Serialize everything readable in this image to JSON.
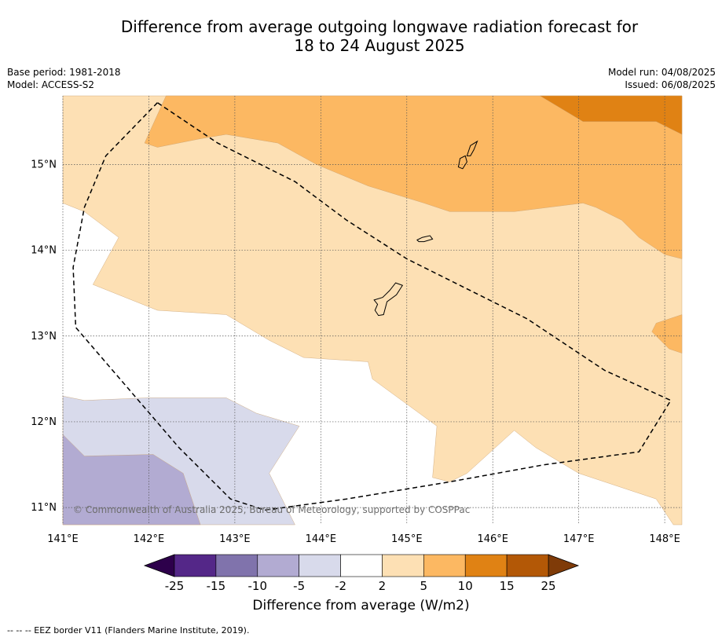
{
  "header": {
    "title_line1": "Difference from average outgoing longwave radiation forecast for",
    "title_line2": "18 to 24 August 2025",
    "base_period": "Base period: 1981-2018",
    "model": "Model: ACCESS-S2",
    "model_run": "Model run: 04/08/2025",
    "issued": "Issued: 06/08/2025"
  },
  "map": {
    "lon_range": [
      141.0,
      148.2
    ],
    "lat_range": [
      10.8,
      15.8
    ],
    "lon_ticks": [
      {
        "value": 141,
        "label": "141°E"
      },
      {
        "value": 142,
        "label": "142°E"
      },
      {
        "value": 143,
        "label": "143°E"
      },
      {
        "value": 144,
        "label": "144°E"
      },
      {
        "value": 145,
        "label": "145°E"
      },
      {
        "value": 146,
        "label": "146°E"
      },
      {
        "value": 147,
        "label": "147°E"
      },
      {
        "value": 148,
        "label": "148°E"
      }
    ],
    "lat_ticks": [
      {
        "value": 15,
        "label": "15°N"
      },
      {
        "value": 14,
        "label": "14°N"
      },
      {
        "value": 13,
        "label": "13°N"
      },
      {
        "value": 12,
        "label": "12°N"
      },
      {
        "value": 11,
        "label": "11°N"
      }
    ],
    "copyright": "© Commonwealth of Australia 2025, Bureau of Meteorology, supported by COSPPac",
    "zones": [
      {
        "level": "2 to 5",
        "color": "#fde0b4",
        "points": [
          [
            141,
            15.8
          ],
          [
            148.2,
            15.8
          ],
          [
            148.2,
            10.8
          ],
          [
            148.1,
            10.8
          ],
          [
            147.9,
            11.1
          ],
          [
            147.0,
            11.4
          ],
          [
            146.5,
            11.7
          ],
          [
            146.25,
            11.9
          ],
          [
            145.7,
            11.4
          ],
          [
            145.5,
            11.3
          ],
          [
            145.3,
            11.35
          ],
          [
            145.35,
            11.95
          ],
          [
            144.6,
            12.5
          ],
          [
            144.55,
            12.7
          ],
          [
            143.8,
            12.75
          ],
          [
            143.4,
            12.95
          ],
          [
            142.9,
            13.25
          ],
          [
            142.1,
            13.3
          ],
          [
            141.35,
            13.6
          ],
          [
            141.65,
            14.15
          ],
          [
            141.25,
            14.45
          ],
          [
            141.0,
            14.55
          ]
        ]
      },
      {
        "level": "5 to 10",
        "color": "#fcb862",
        "points": [
          [
            142.2,
            15.8
          ],
          [
            148.2,
            15.8
          ],
          [
            148.2,
            13.9
          ],
          [
            148.0,
            13.95
          ],
          [
            147.7,
            14.15
          ],
          [
            147.5,
            14.35
          ],
          [
            147.2,
            14.5
          ],
          [
            147.05,
            14.55
          ],
          [
            146.25,
            14.45
          ],
          [
            145.5,
            14.45
          ],
          [
            145.2,
            14.55
          ],
          [
            144.55,
            14.75
          ],
          [
            143.95,
            15.0
          ],
          [
            143.5,
            15.25
          ],
          [
            142.9,
            15.35
          ],
          [
            142.6,
            15.3
          ],
          [
            142.1,
            15.2
          ],
          [
            141.95,
            15.25
          ]
        ]
      },
      {
        "level": "5 to 10",
        "color": "#fcb862",
        "points": [
          [
            148.2,
            13.25
          ],
          [
            147.9,
            13.15
          ],
          [
            147.85,
            13.05
          ],
          [
            148.05,
            12.85
          ],
          [
            148.2,
            12.8
          ]
        ]
      },
      {
        "level": "10 to 15",
        "color": "#e08214",
        "points": [
          [
            146.55,
            15.8
          ],
          [
            148.2,
            15.8
          ],
          [
            148.2,
            15.35
          ],
          [
            147.9,
            15.5
          ],
          [
            147.05,
            15.5
          ]
        ]
      },
      {
        "level": "-5 to -2",
        "color": "#d8daeb",
        "points": [
          [
            141,
            12.3
          ],
          [
            141.25,
            12.25
          ],
          [
            142.0,
            12.28
          ],
          [
            142.9,
            12.28
          ],
          [
            143.25,
            12.1
          ],
          [
            143.75,
            11.95
          ],
          [
            143.4,
            11.4
          ],
          [
            143.7,
            10.8
          ],
          [
            141,
            10.8
          ]
        ]
      },
      {
        "level": "-10 to -5",
        "color": "#b2abd2",
        "points": [
          [
            141,
            11.85
          ],
          [
            141.25,
            11.6
          ],
          [
            142.05,
            11.62
          ],
          [
            142.4,
            11.4
          ],
          [
            142.6,
            10.8
          ],
          [
            141,
            10.8
          ]
        ]
      }
    ],
    "islands": [
      {
        "name": "",
        "points": [
          [
            144.62,
            13.42
          ],
          [
            144.72,
            13.45
          ],
          [
            144.8,
            13.53
          ],
          [
            144.87,
            13.62
          ],
          [
            144.95,
            13.59
          ],
          [
            144.88,
            13.48
          ],
          [
            144.77,
            13.4
          ],
          [
            144.73,
            13.25
          ],
          [
            144.67,
            13.24
          ],
          [
            144.63,
            13.3
          ],
          [
            144.66,
            13.37
          ]
        ]
      },
      {
        "name": "",
        "points": [
          [
            145.12,
            14.12
          ],
          [
            145.18,
            14.15
          ],
          [
            145.27,
            14.17
          ],
          [
            145.3,
            14.13
          ],
          [
            145.2,
            14.1
          ],
          [
            145.14,
            14.1
          ]
        ]
      },
      {
        "name": "",
        "points": [
          [
            145.6,
            14.97
          ],
          [
            145.62,
            15.07
          ],
          [
            145.68,
            15.1
          ],
          [
            145.7,
            15.03
          ],
          [
            145.65,
            14.95
          ]
        ]
      },
      {
        "name": "",
        "points": [
          [
            145.7,
            15.1
          ],
          [
            145.74,
            15.22
          ],
          [
            145.82,
            15.27
          ],
          [
            145.78,
            15.17
          ],
          [
            145.74,
            15.1
          ]
        ]
      }
    ],
    "eez_border": [
      [
        142.1,
        15.72
      ],
      [
        141.5,
        15.1
      ],
      [
        141.25,
        14.5
      ],
      [
        141.12,
        13.8
      ],
      [
        141.15,
        13.1
      ],
      [
        141.75,
        12.4
      ],
      [
        142.35,
        11.7
      ],
      [
        142.95,
        11.1
      ],
      [
        143.35,
        10.97
      ],
      [
        144.3,
        11.1
      ],
      [
        145.5,
        11.3
      ],
      [
        146.6,
        11.5
      ],
      [
        147.7,
        11.65
      ],
      [
        148.07,
        12.25
      ],
      [
        147.3,
        12.6
      ],
      [
        146.4,
        13.2
      ],
      [
        145.5,
        13.65
      ],
      [
        145.0,
        13.9
      ],
      [
        144.3,
        14.35
      ],
      [
        143.7,
        14.8
      ],
      [
        142.8,
        15.25
      ],
      [
        142.1,
        15.72
      ]
    ]
  },
  "colorbar": {
    "title": "Difference from average (W/m2)",
    "bins": [
      {
        "color": "#2d004b",
        "label": ""
      },
      {
        "color": "#542788",
        "label": "-25"
      },
      {
        "color": "#8073ac",
        "label": "-15"
      },
      {
        "color": "#b2abd2",
        "label": "-10"
      },
      {
        "color": "#d8daeb",
        "label": "-5"
      },
      {
        "color": "#ffffff",
        "label": "-2"
      },
      {
        "color": "#fde0b4",
        "label": "2"
      },
      {
        "color": "#fcb862",
        "label": "5"
      },
      {
        "color": "#e08214",
        "label": "10"
      },
      {
        "color": "#b35806",
        "label": "15"
      },
      {
        "color": "#7f3b08",
        "label": "25"
      }
    ]
  },
  "footer": {
    "note": "--  --  -- EEZ border V11 (Flanders Marine Institute, 2019)."
  }
}
